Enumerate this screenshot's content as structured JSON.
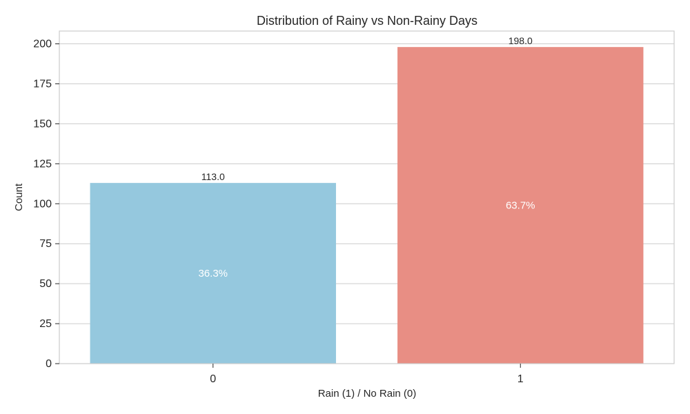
{
  "chart_data": {
    "type": "bar",
    "title": "Distribution of Rainy vs Non-Rainy Days",
    "xlabel": "Rain (1) / No Rain (0)",
    "ylabel": "Count",
    "categories": [
      "0",
      "1"
    ],
    "values": [
      113,
      198
    ],
    "value_labels": [
      "113.0",
      "198.0"
    ],
    "percent_labels": [
      "36.3%",
      "63.7%"
    ],
    "colors": [
      "#95c8de",
      "#e88e84"
    ],
    "ylim": [
      0,
      208
    ],
    "yticks": [
      0,
      25,
      50,
      75,
      100,
      125,
      150,
      175,
      200
    ],
    "grid": true,
    "legend": "none"
  }
}
